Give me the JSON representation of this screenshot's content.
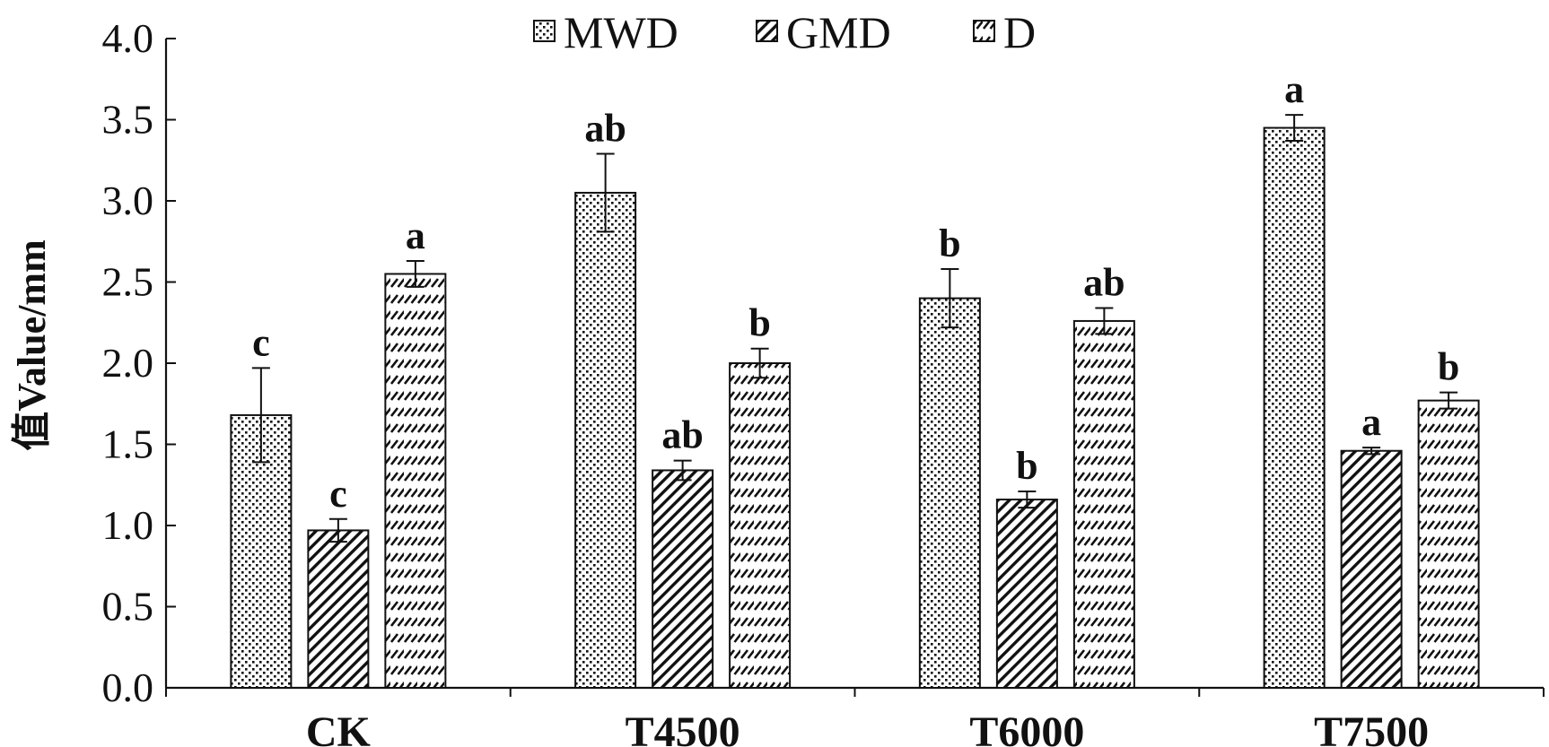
{
  "chart_data": {
    "type": "bar",
    "ylabel": "值Value/mm",
    "xlabel": "",
    "ylim": [
      0,
      4.0
    ],
    "yticks": [
      "0.0",
      "0.5",
      "1.0",
      "1.5",
      "2.0",
      "2.5",
      "3.0",
      "3.5",
      "4.0"
    ],
    "legend_position": "top-center",
    "categories": [
      "CK",
      "T4500",
      "T6000",
      "T7500"
    ],
    "series": [
      {
        "name": "MWD",
        "pattern": "dots",
        "values": [
          1.68,
          3.05,
          2.4,
          3.45
        ],
        "errors": [
          0.29,
          0.24,
          0.18,
          0.08
        ],
        "labels": [
          "c",
          "ab",
          "b",
          "a"
        ]
      },
      {
        "name": "GMD",
        "pattern": "diagonal-dense",
        "values": [
          0.97,
          1.34,
          1.16,
          1.46
        ],
        "errors": [
          0.07,
          0.06,
          0.05,
          0.02
        ],
        "labels": [
          "c",
          "ab",
          "b",
          "a"
        ]
      },
      {
        "name": "D",
        "pattern": "dashed-diagonal",
        "values": [
          2.55,
          2.0,
          2.26,
          1.77
        ],
        "errors": [
          0.08,
          0.09,
          0.08,
          0.05
        ],
        "labels": [
          "a",
          "b",
          "ab",
          "b"
        ]
      }
    ]
  }
}
